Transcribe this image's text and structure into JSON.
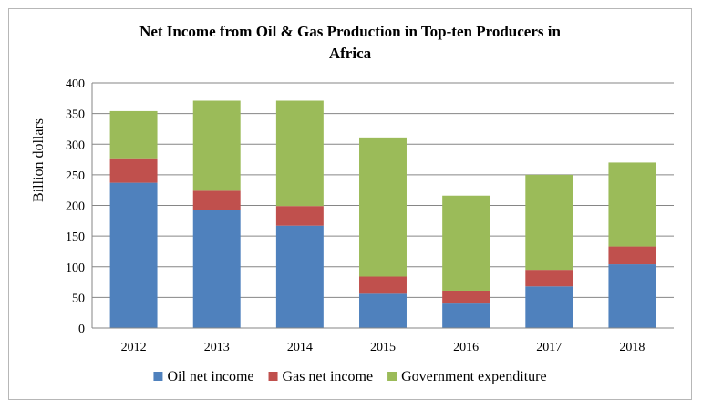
{
  "chart_data": {
    "type": "bar",
    "stacked": true,
    "title": "Net Income from Oil & Gas Production in Top-ten Producers in Africa",
    "title_lines": [
      "Net Income from Oil & Gas Production in Top-ten Producers in",
      "Africa"
    ],
    "xlabel": "",
    "ylabel": "Billion dollars",
    "ylim": [
      0,
      400
    ],
    "yticks": [
      0,
      50,
      100,
      150,
      200,
      250,
      300,
      350,
      400
    ],
    "grid": true,
    "legend_position": "bottom",
    "categories": [
      "2012",
      "2013",
      "2014",
      "2015",
      "2016",
      "2017",
      "2018"
    ],
    "series": [
      {
        "name": "Oil net income",
        "color": "#4f81bd",
        "values": [
          237,
          192,
          167,
          56,
          40,
          68,
          104
        ]
      },
      {
        "name": "Gas net income",
        "color": "#c0504d",
        "values": [
          40,
          32,
          32,
          28,
          21,
          27,
          29
        ]
      },
      {
        "name": "Government expenditure",
        "color": "#9bbb59",
        "values": [
          77,
          147,
          172,
          227,
          155,
          155,
          137
        ]
      }
    ]
  }
}
